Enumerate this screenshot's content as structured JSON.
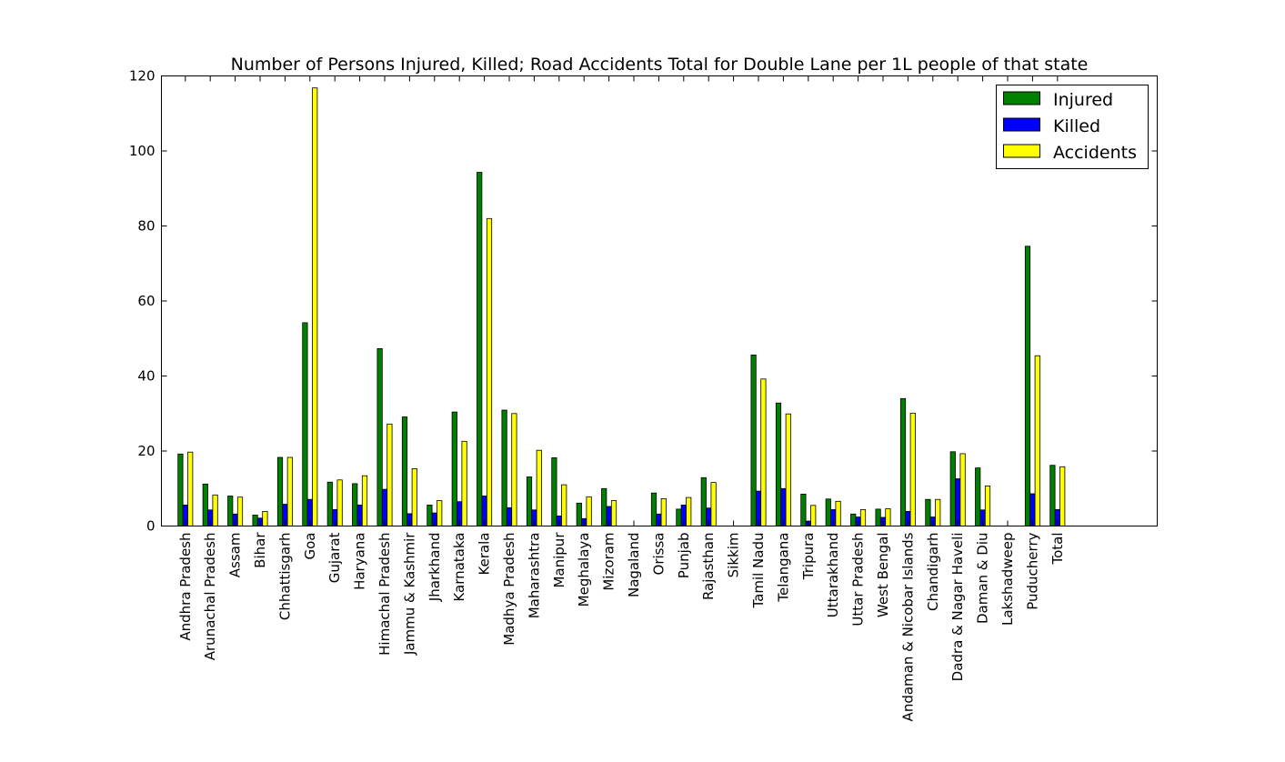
{
  "colors": {
    "injured": "#008000",
    "killed": "#0000ff",
    "accidents": "#ffff00",
    "axes": "#000000",
    "background": "#ffffff"
  },
  "chart_data": {
    "type": "bar",
    "title": "Number of Persons Injured, Killed; Road Accidents Total for Double Lane per 1L people of that state",
    "xlabel": "",
    "ylabel": "",
    "ylim": [
      0,
      120
    ],
    "yticks": [
      0,
      20,
      40,
      60,
      80,
      100,
      120
    ],
    "grid": false,
    "legend_position": "top-right",
    "categories": [
      "Andhra Pradesh",
      "Arunachal Pradesh",
      "Assam",
      "Bihar",
      "Chhattisgarh",
      "Goa",
      "Gujarat",
      "Haryana",
      "Himachal Pradesh",
      "Jammu & Kashmir",
      "Jharkhand",
      "Karnataka",
      "Kerala",
      "Madhya Pradesh",
      "Maharashtra",
      "Manipur",
      "Meghalaya",
      "Mizoram",
      "Nagaland",
      "Orissa",
      "Punjab",
      "Rajasthan",
      "Sikkim",
      "Tamil Nadu",
      "Telangana",
      "Tripura",
      "Uttarakhand",
      "Uttar Pradesh",
      "West Bengal",
      "Andaman & Nicobar Islands",
      "Chandigarh",
      "Dadra & Nagar Haveli",
      "Daman & Diu",
      "Lakshadweep",
      "Puducherry",
      "Total"
    ],
    "series": [
      {
        "name": "Injured",
        "color": "#008000",
        "values": [
          19.2,
          11.2,
          8.0,
          2.9,
          18.3,
          54.2,
          11.7,
          11.3,
          47.3,
          29.1,
          5.6,
          30.4,
          94.3,
          30.9,
          13.1,
          18.2,
          6.1,
          10.0,
          0,
          8.8,
          4.5,
          12.9,
          0,
          45.6,
          32.8,
          8.5,
          7.2,
          3.2,
          4.5,
          34.0,
          7.1,
          19.8,
          15.5,
          0,
          74.6,
          16.2
        ]
      },
      {
        "name": "Killed",
        "color": "#0000ff",
        "values": [
          5.6,
          4.3,
          3.2,
          2.1,
          5.8,
          7.1,
          4.4,
          5.6,
          9.8,
          3.3,
          3.5,
          6.5,
          8.0,
          4.9,
          4.3,
          2.7,
          2.0,
          5.2,
          0,
          3.2,
          5.6,
          4.8,
          0,
          9.3,
          10.0,
          1.3,
          4.4,
          2.4,
          2.3,
          3.9,
          2.4,
          12.6,
          4.3,
          0,
          8.6,
          4.4
        ]
      },
      {
        "name": "Accidents",
        "color": "#ffff00",
        "values": [
          19.7,
          8.3,
          7.7,
          3.9,
          18.3,
          116.8,
          12.3,
          13.4,
          27.2,
          15.3,
          6.8,
          22.6,
          82.0,
          30.0,
          20.2,
          11.0,
          7.8,
          6.8,
          0,
          7.3,
          7.6,
          11.6,
          0,
          39.2,
          29.9,
          5.5,
          6.6,
          4.4,
          4.6,
          30.1,
          7.1,
          19.3,
          10.7,
          0,
          45.4,
          15.8
        ]
      }
    ]
  }
}
